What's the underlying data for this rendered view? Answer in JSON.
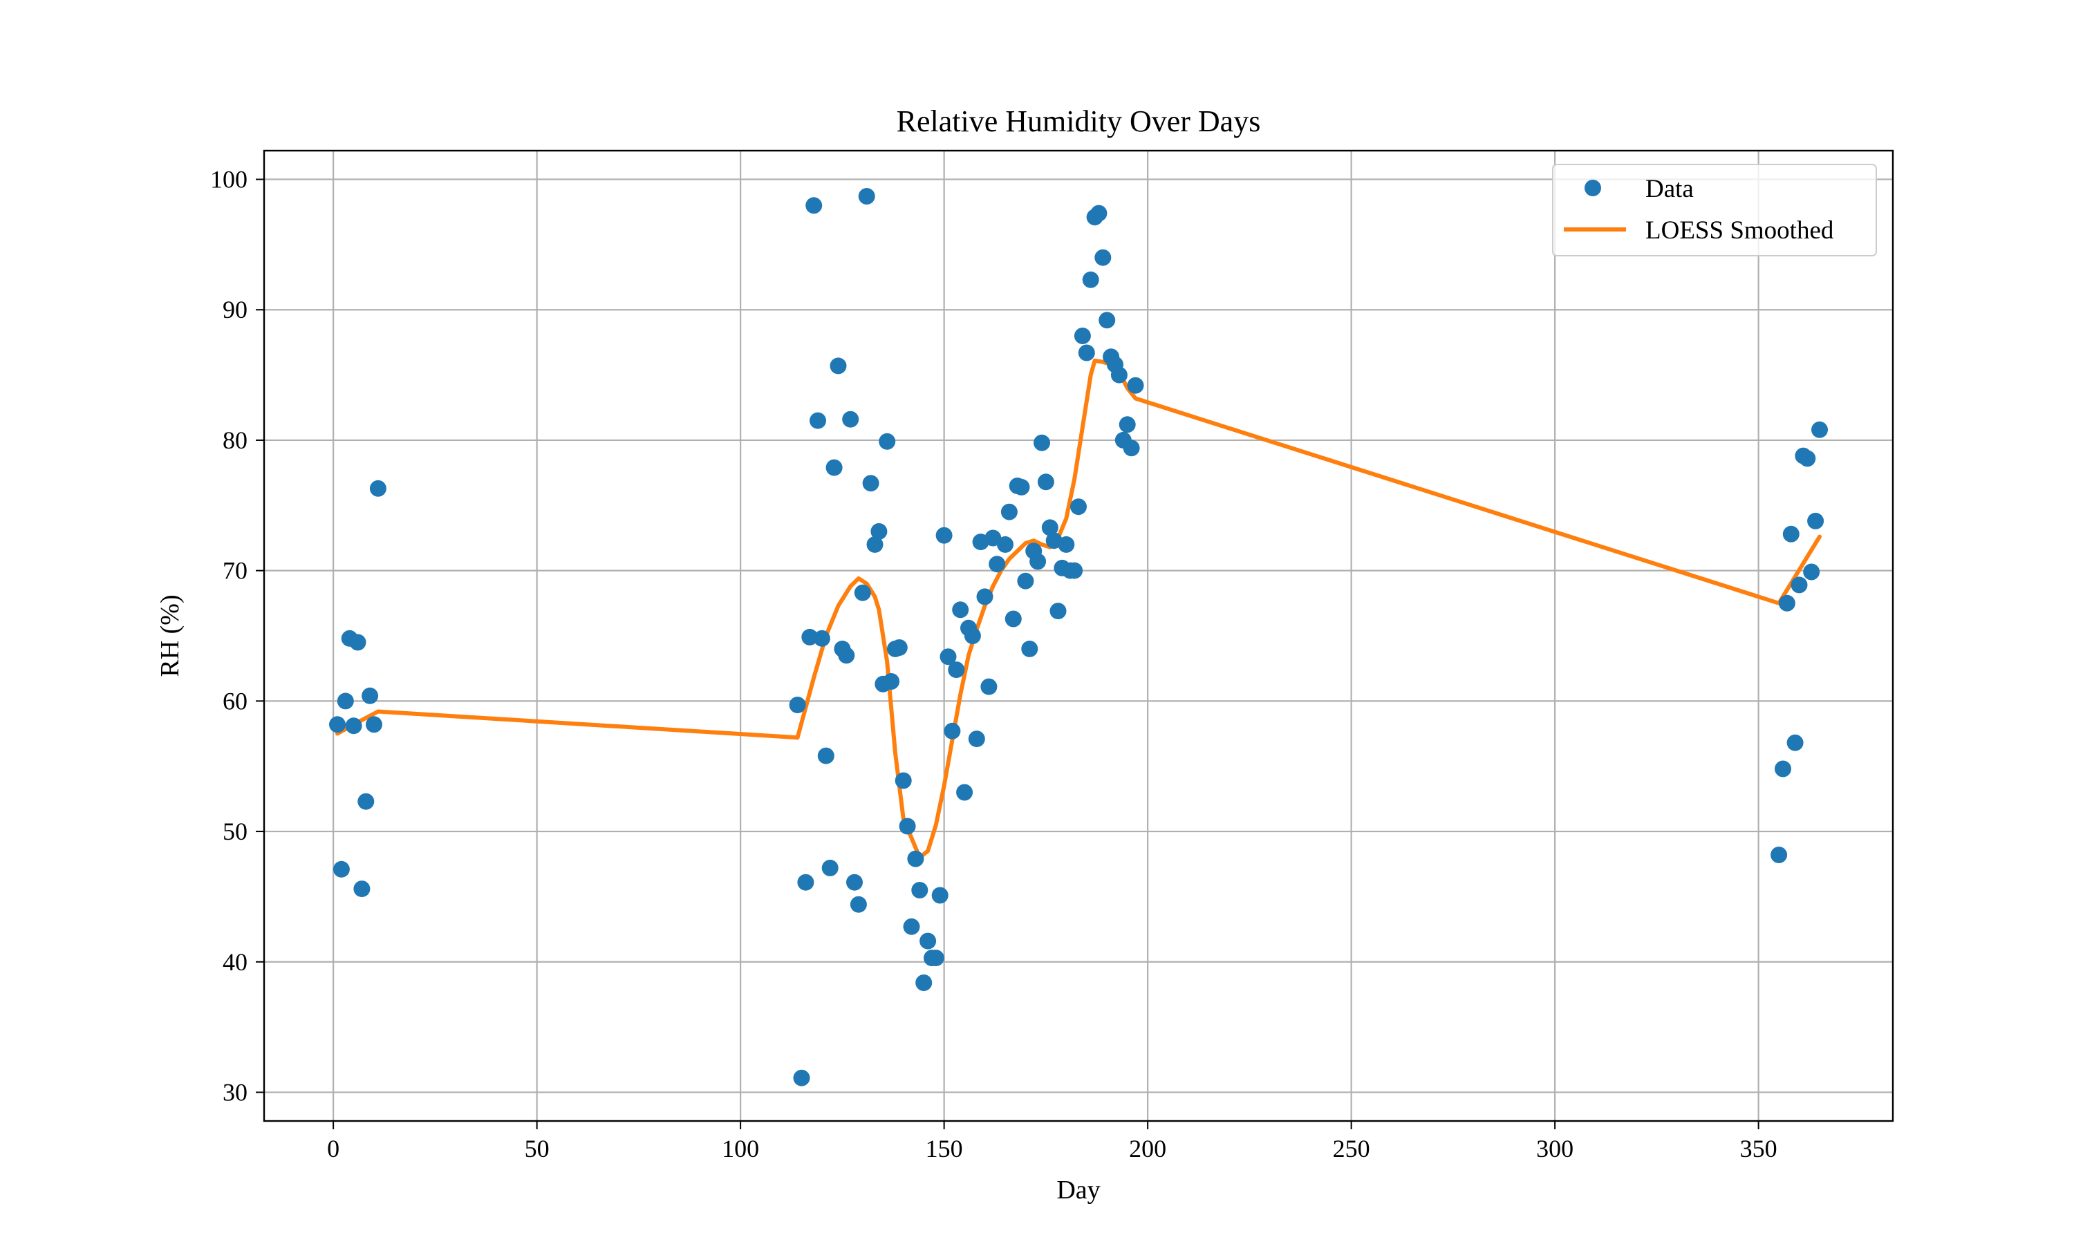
{
  "chart_data": {
    "type": "scatter",
    "title": "Relative Humidity Over Days",
    "xlabel": "Day",
    "ylabel": "RH (%)",
    "xlim": [
      -17,
      383
    ],
    "ylim": [
      27.8,
      102.2
    ],
    "xticks": [
      0,
      50,
      100,
      150,
      200,
      250,
      300,
      350
    ],
    "yticks": [
      30,
      40,
      50,
      60,
      70,
      80,
      90,
      100
    ],
    "grid": true,
    "legend_position": "top-right",
    "series": [
      {
        "name": "Data",
        "type": "scatter",
        "color": "#1f77b4",
        "points": [
          [
            1,
            58.2
          ],
          [
            2,
            47.1
          ],
          [
            3,
            60.0
          ],
          [
            4,
            64.8
          ],
          [
            5,
            58.1
          ],
          [
            6,
            64.5
          ],
          [
            7,
            45.6
          ],
          [
            8,
            52.3
          ],
          [
            9,
            60.4
          ],
          [
            10,
            58.2
          ],
          [
            11,
            76.3
          ],
          [
            114,
            59.7
          ],
          [
            115,
            31.1
          ],
          [
            116,
            46.1
          ],
          [
            117,
            64.9
          ],
          [
            118,
            98.0
          ],
          [
            119,
            81.5
          ],
          [
            120,
            64.8
          ],
          [
            121,
            55.8
          ],
          [
            122,
            47.2
          ],
          [
            123,
            77.9
          ],
          [
            124,
            85.7
          ],
          [
            125,
            64.0
          ],
          [
            126,
            63.5
          ],
          [
            127,
            81.6
          ],
          [
            128,
            46.1
          ],
          [
            129,
            44.4
          ],
          [
            130,
            68.3
          ],
          [
            131,
            98.7
          ],
          [
            132,
            76.7
          ],
          [
            133,
            72.0
          ],
          [
            134,
            73.0
          ],
          [
            135,
            61.3
          ],
          [
            136,
            79.9
          ],
          [
            137,
            61.5
          ],
          [
            138,
            64.0
          ],
          [
            139,
            64.1
          ],
          [
            140,
            53.9
          ],
          [
            141,
            50.4
          ],
          [
            142,
            42.7
          ],
          [
            143,
            47.9
          ],
          [
            144,
            45.5
          ],
          [
            145,
            38.4
          ],
          [
            146,
            41.6
          ],
          [
            147,
            40.3
          ],
          [
            148,
            40.3
          ],
          [
            149,
            45.1
          ],
          [
            150,
            72.7
          ],
          [
            151,
            63.4
          ],
          [
            152,
            57.7
          ],
          [
            153,
            62.4
          ],
          [
            154,
            67.0
          ],
          [
            155,
            53.0
          ],
          [
            156,
            65.6
          ],
          [
            157,
            65.0
          ],
          [
            158,
            57.1
          ],
          [
            159,
            72.2
          ],
          [
            160,
            68.0
          ],
          [
            161,
            61.1
          ],
          [
            162,
            72.5
          ],
          [
            163,
            70.5
          ],
          [
            165,
            72.0
          ],
          [
            166,
            74.5
          ],
          [
            167,
            66.3
          ],
          [
            168,
            76.5
          ],
          [
            169,
            76.4
          ],
          [
            170,
            69.2
          ],
          [
            171,
            64.0
          ],
          [
            172,
            71.5
          ],
          [
            173,
            70.7
          ],
          [
            174,
            79.8
          ],
          [
            175,
            76.8
          ],
          [
            176,
            73.3
          ],
          [
            177,
            72.3
          ],
          [
            178,
            66.9
          ],
          [
            179,
            70.2
          ],
          [
            180,
            72.0
          ],
          [
            181,
            70.0
          ],
          [
            182,
            70.0
          ],
          [
            183,
            74.9
          ],
          [
            184,
            88.0
          ],
          [
            185,
            86.7
          ],
          [
            186,
            92.3
          ],
          [
            187,
            97.1
          ],
          [
            188,
            97.4
          ],
          [
            189,
            94.0
          ],
          [
            190,
            89.2
          ],
          [
            191,
            86.4
          ],
          [
            192,
            85.8
          ],
          [
            193,
            85.0
          ],
          [
            194,
            80.0
          ],
          [
            195,
            81.2
          ],
          [
            196,
            79.4
          ],
          [
            197,
            84.2
          ],
          [
            355,
            48.2
          ],
          [
            356,
            54.8
          ],
          [
            357,
            67.5
          ],
          [
            358,
            72.8
          ],
          [
            359,
            56.8
          ],
          [
            360,
            68.9
          ],
          [
            361,
            78.8
          ],
          [
            362,
            78.6
          ],
          [
            363,
            69.9
          ],
          [
            364,
            73.8
          ],
          [
            365,
            80.8
          ]
        ]
      },
      {
        "name": "LOESS Smoothed",
        "type": "line",
        "color": "#ff7f0e",
        "points": [
          [
            1,
            57.5
          ],
          [
            5,
            58.2
          ],
          [
            11,
            59.2
          ],
          [
            114,
            57.2
          ],
          [
            118,
            61.8
          ],
          [
            121,
            65.0
          ],
          [
            124,
            67.3
          ],
          [
            127,
            68.8
          ],
          [
            129,
            69.4
          ],
          [
            131,
            69.0
          ],
          [
            133,
            68.0
          ],
          [
            134,
            67.0
          ],
          [
            136,
            63.0
          ],
          [
            138,
            56.0
          ],
          [
            140,
            51.0
          ],
          [
            142,
            49.5
          ],
          [
            144,
            48.0
          ],
          [
            146,
            48.5
          ],
          [
            148,
            50.5
          ],
          [
            150,
            53.5
          ],
          [
            152,
            57.0
          ],
          [
            154,
            60.5
          ],
          [
            156,
            63.5
          ],
          [
            158,
            65.5
          ],
          [
            160,
            67.3
          ],
          [
            162,
            68.8
          ],
          [
            164,
            70.0
          ],
          [
            166,
            70.9
          ],
          [
            168,
            71.5
          ],
          [
            170,
            72.1
          ],
          [
            172,
            72.3
          ],
          [
            174,
            72.0
          ],
          [
            176,
            71.8
          ],
          [
            178,
            72.5
          ],
          [
            180,
            74.0
          ],
          [
            182,
            77.0
          ],
          [
            184,
            81.0
          ],
          [
            186,
            85.0
          ],
          [
            187,
            86.1
          ],
          [
            189,
            86.0
          ],
          [
            191,
            85.8
          ],
          [
            193,
            85.2
          ],
          [
            195,
            84.0
          ],
          [
            197,
            83.2
          ],
          [
            355,
            67.5
          ],
          [
            365,
            72.6
          ]
        ]
      }
    ]
  }
}
